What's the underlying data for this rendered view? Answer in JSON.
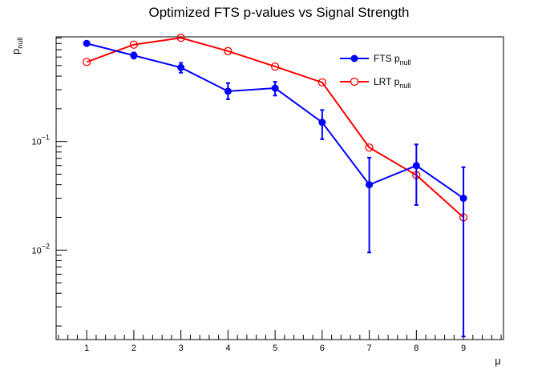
{
  "chart_data": {
    "type": "line",
    "title": "Optimized FTS p-values vs Signal Strength",
    "xlabel": "μ",
    "ylabel": {
      "main": "p",
      "sub": "null"
    },
    "x": [
      1,
      2,
      3,
      4,
      5,
      6,
      7,
      8,
      9
    ],
    "xlim": [
      0.35,
      9.85
    ],
    "ylim": [
      0.0015,
      0.92
    ],
    "yscale": "log",
    "xticks": [
      "1",
      "2",
      "3",
      "4",
      "5",
      "6",
      "7",
      "8",
      "9"
    ],
    "yticks": [
      {
        "value": 0.1,
        "base": "10",
        "exp": "−1"
      },
      {
        "value": 0.01,
        "base": "10",
        "exp": "−2"
      }
    ],
    "grid": false,
    "legend": {
      "position": "top-right"
    },
    "series": [
      {
        "name": "FTS p",
        "name_sub": "null",
        "color": "#0000ff",
        "marker": "filled-circle",
        "values": [
          0.8,
          0.62,
          0.48,
          0.29,
          0.31,
          0.15,
          0.04,
          0.06,
          0.03
        ],
        "err_low": [
          0.79,
          0.58,
          0.43,
          0.245,
          0.265,
          0.105,
          0.0095,
          0.026,
          0.0016
        ],
        "err_high": [
          0.81,
          0.66,
          0.53,
          0.345,
          0.355,
          0.195,
          0.071,
          0.094,
          0.058
        ]
      },
      {
        "name": "LRT p",
        "name_sub": "null",
        "color": "#ff0000",
        "marker": "open-circle",
        "values": [
          0.54,
          0.78,
          0.9,
          0.68,
          0.49,
          0.35,
          0.088,
          0.049,
          0.02
        ]
      }
    ]
  }
}
